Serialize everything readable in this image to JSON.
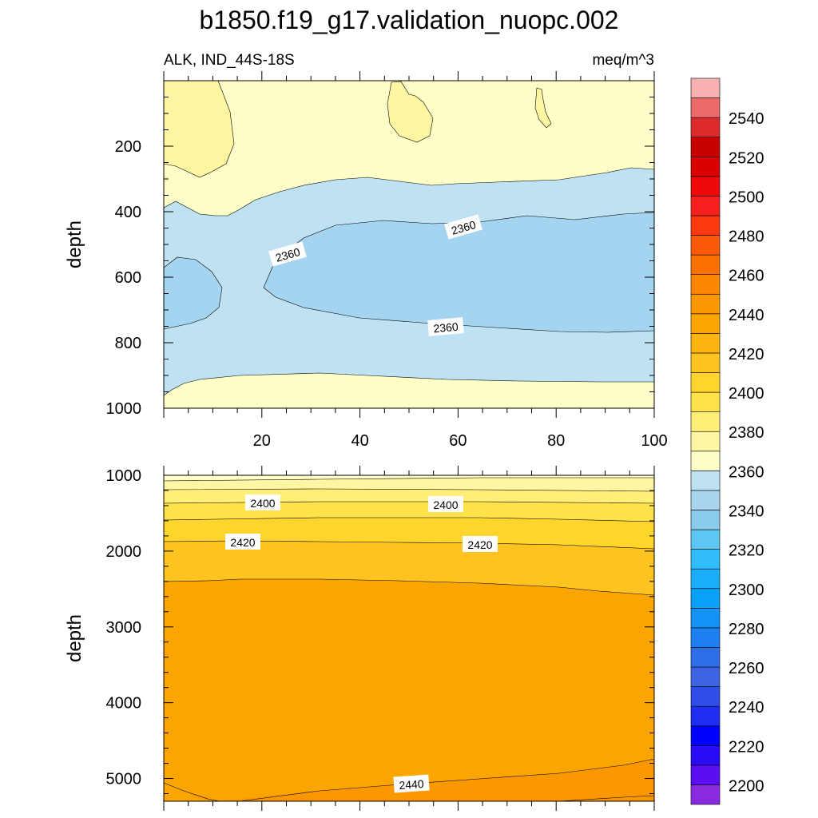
{
  "title": "b1850.f19_g17.validation_nuopc.002",
  "chart_data": {
    "type": "contour",
    "variable_label": "ALK, IND_44S-18S",
    "units": "meq/m^3",
    "colorbar": {
      "levels": [
        2200,
        2210,
        2220,
        2230,
        2240,
        2250,
        2260,
        2270,
        2280,
        2290,
        2300,
        2310,
        2320,
        2330,
        2340,
        2350,
        2360,
        2370,
        2380,
        2390,
        2400,
        2410,
        2420,
        2430,
        2440,
        2450,
        2460,
        2470,
        2480,
        2490,
        2500,
        2510,
        2520,
        2530,
        2540,
        2550
      ],
      "labels": [
        "2200",
        "2220",
        "2240",
        "2260",
        "2280",
        "2300",
        "2320",
        "2340",
        "2360",
        "2380",
        "2400",
        "2420",
        "2440",
        "2460",
        "2480",
        "2500",
        "2520",
        "2540"
      ],
      "colors": [
        "#8a2be2",
        "#5b0ef4",
        "#2a0bf7",
        "#0000ff",
        "#1f2ef2",
        "#2f4ee8",
        "#3c64e3",
        "#2e6ee8",
        "#1e80f0",
        "#1492f7",
        "#08a1f8",
        "#1aaefa",
        "#2fbcf8",
        "#5ec6f2",
        "#8acbec",
        "#a8d4ee",
        "#bfe2f3",
        "#fefec8",
        "#fff6a4",
        "#ffee78",
        "#fde24a",
        "#fdd52c",
        "#fdc320",
        "#fcb410",
        "#fba600",
        "#fb9800",
        "#fb8600",
        "#fb7000",
        "#fc5a08",
        "#fc380e",
        "#f81f1f",
        "#ef0808",
        "#da0000",
        "#c70000",
        "#dd2b2b",
        "#ec6a6a",
        "#f8b0b0"
      ]
    },
    "top_panel": {
      "ylabel": "depth",
      "ylim": [
        1000,
        0
      ],
      "yticks": [
        "200",
        "400",
        "600",
        "800",
        "1000"
      ],
      "xlim": [
        0,
        100
      ],
      "xticks": [
        "20",
        "40",
        "60",
        "80",
        "100"
      ],
      "contour_labels": [
        "2360",
        "2360",
        "2360"
      ]
    },
    "bottom_panel": {
      "ylabel": "depth",
      "ylim": [
        5300,
        1000
      ],
      "yticks": [
        "1000",
        "2000",
        "3000",
        "4000",
        "5000"
      ],
      "xlim": [
        0,
        100
      ],
      "contour_labels": [
        "2400",
        "2400",
        "2420",
        "2420",
        "2440"
      ]
    }
  }
}
